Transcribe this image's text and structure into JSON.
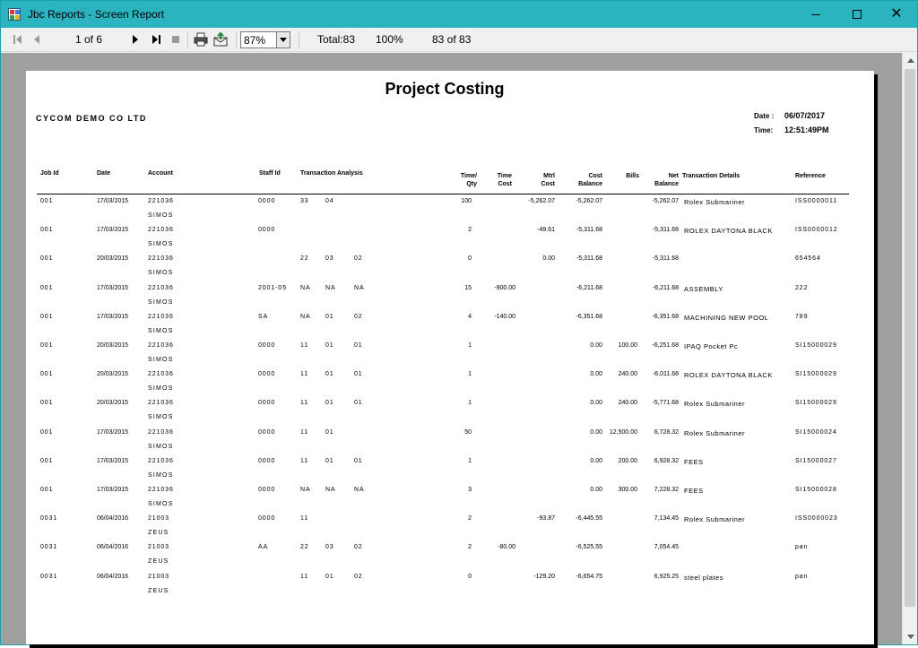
{
  "window": {
    "title": "Jbc Reports - Screen Report"
  },
  "toolbar": {
    "page_indicator": "1 of 6",
    "zoom": "87%",
    "total": "Total:83",
    "percent": "100%",
    "record_count": "83 of 83"
  },
  "report": {
    "title": "Project Costing",
    "company": "CYCOM DEMO CO LTD",
    "date_label": "Date :",
    "date_value": "06/07/2017",
    "time_label": "Time:",
    "time_value": "12:51:49PM",
    "headers": {
      "job_id": "Job Id",
      "date": "Date",
      "account": "Account",
      "staff_id": "Staff Id",
      "transaction_analysis": "Transaction Analysis",
      "time_qty_1": "Time/",
      "time_qty_2": "Qty",
      "time_cost_1": "Time",
      "time_cost_2": "Cost",
      "mtrl_cost_1": "Mtrl",
      "mtrl_cost_2": "Cost",
      "cost_balance_1": "Cost",
      "cost_balance_2": "Balance",
      "bills": "Bills",
      "net_balance_1": "Net",
      "net_balance_2": "Balance",
      "transaction_details": "Transaction  Details",
      "reference": "Reference"
    },
    "rows": [
      {
        "job": "001",
        "date": "17/03/2015",
        "account": "221036",
        "name": "SIMOS",
        "staff": "0000",
        "a1": "33",
        "a2": "04",
        "a3": "",
        "qty": "100",
        "time_cost": "",
        "mtrl_cost": "-5,262.07",
        "cost_balance": "-5,262.07",
        "bills": "",
        "net_balance": "-5,262.07",
        "details": "Rolex Submariner",
        "reference": "ISS0000011"
      },
      {
        "job": "001",
        "date": "17/03/2015",
        "account": "221036",
        "name": "SIMOS",
        "staff": "0000",
        "a1": "",
        "a2": "",
        "a3": "",
        "qty": "2",
        "time_cost": "",
        "mtrl_cost": "-49.61",
        "cost_balance": "-5,311.68",
        "bills": "",
        "net_balance": "-5,311.68",
        "details": "ROLEX DAYTONA BLACK",
        "reference": "ISS0000012"
      },
      {
        "job": "001",
        "date": "20/03/2015",
        "account": "221036",
        "name": "SIMOS",
        "staff": "",
        "a1": "22",
        "a2": "03",
        "a3": "02",
        "qty": "0",
        "time_cost": "",
        "mtrl_cost": "0.00",
        "cost_balance": "-5,311.68",
        "bills": "",
        "net_balance": "-5,311.68",
        "details": "",
        "reference": "654564"
      },
      {
        "job": "001",
        "date": "17/03/2015",
        "account": "221036",
        "name": "SIMOS",
        "staff": "2001-05",
        "a1": "NA",
        "a2": "NA",
        "a3": "NA",
        "qty": "15",
        "time_cost": "-900.00",
        "mtrl_cost": "",
        "cost_balance": "-6,211.68",
        "bills": "",
        "net_balance": "-6,211.68",
        "details": "ASSEMBLY",
        "reference": "222"
      },
      {
        "job": "001",
        "date": "17/03/2015",
        "account": "221036",
        "name": "SIMOS",
        "staff": "SA",
        "a1": "NA",
        "a2": "01",
        "a3": "02",
        "qty": "4",
        "time_cost": "-140.00",
        "mtrl_cost": "",
        "cost_balance": "-6,351.68",
        "bills": "",
        "net_balance": "-6,351.68",
        "details": "MACHINING NEW POOL",
        "reference": "789"
      },
      {
        "job": "001",
        "date": "20/03/2015",
        "account": "221036",
        "name": "SIMOS",
        "staff": "0000",
        "a1": "11",
        "a2": "01",
        "a3": "01",
        "qty": "1",
        "time_cost": "",
        "mtrl_cost": "",
        "cost_balance": "0.00",
        "bills": "100.00",
        "net_balance": "-6,251.68",
        "details": "IPAQ Pocket Pc",
        "reference": "SI15000029"
      },
      {
        "job": "001",
        "date": "20/03/2015",
        "account": "221036",
        "name": "SIMOS",
        "staff": "0000",
        "a1": "11",
        "a2": "01",
        "a3": "01",
        "qty": "1",
        "time_cost": "",
        "mtrl_cost": "",
        "cost_balance": "0.00",
        "bills": "240.00",
        "net_balance": "-6,011.68",
        "details": "ROLEX DAYTONA BLACK",
        "reference": "SI15000029"
      },
      {
        "job": "001",
        "date": "20/03/2015",
        "account": "221036",
        "name": "SIMOS",
        "staff": "0000",
        "a1": "11",
        "a2": "01",
        "a3": "01",
        "qty": "1",
        "time_cost": "",
        "mtrl_cost": "",
        "cost_balance": "0.00",
        "bills": "240.00",
        "net_balance": "-5,771.68",
        "details": "Rolex Submariner",
        "reference": "SI15000029"
      },
      {
        "job": "001",
        "date": "17/03/2015",
        "account": "221036",
        "name": "SIMOS",
        "staff": "0000",
        "a1": "11",
        "a2": "01",
        "a3": "",
        "qty": "50",
        "time_cost": "",
        "mtrl_cost": "",
        "cost_balance": "0.00",
        "bills": "12,500.00",
        "net_balance": "6,728.32",
        "details": "Rolex Submariner",
        "reference": "SI15000024"
      },
      {
        "job": "001",
        "date": "17/03/2015",
        "account": "221036",
        "name": "SIMOS",
        "staff": "0000",
        "a1": "11",
        "a2": "01",
        "a3": "01",
        "qty": "1",
        "time_cost": "",
        "mtrl_cost": "",
        "cost_balance": "0.00",
        "bills": "200.00",
        "net_balance": "6,928.32",
        "details": "FEES",
        "reference": "SI15000027"
      },
      {
        "job": "001",
        "date": "17/03/2015",
        "account": "221036",
        "name": "SIMOS",
        "staff": "0000",
        "a1": "NA",
        "a2": "NA",
        "a3": "NA",
        "qty": "3",
        "time_cost": "",
        "mtrl_cost": "",
        "cost_balance": "0.00",
        "bills": "300.00",
        "net_balance": "7,228.32",
        "details": "FEES",
        "reference": "SI15000028"
      },
      {
        "job": "0031",
        "date": "06/04/2016",
        "account": "21003",
        "name": "ZEUS",
        "staff": "0000",
        "a1": "11",
        "a2": "",
        "a3": "",
        "qty": "2",
        "time_cost": "",
        "mtrl_cost": "-93.87",
        "cost_balance": "-6,445.55",
        "bills": "",
        "net_balance": "7,134.45",
        "details": "Rolex Submariner",
        "reference": "ISS0000023"
      },
      {
        "job": "0031",
        "date": "06/04/2016",
        "account": "21003",
        "name": "ZEUS",
        "staff": "AA",
        "a1": "22",
        "a2": "03",
        "a3": "02",
        "qty": "2",
        "time_cost": "-80.00",
        "mtrl_cost": "",
        "cost_balance": "-6,525.55",
        "bills": "",
        "net_balance": "7,054.45",
        "details": "",
        "reference": "pan"
      },
      {
        "job": "0031",
        "date": "06/04/2016",
        "account": "21003",
        "name": "ZEUS",
        "staff": "",
        "a1": "11",
        "a2": "01",
        "a3": "02",
        "qty": "0",
        "time_cost": "",
        "mtrl_cost": "-129.20",
        "cost_balance": "-6,654.75",
        "bills": "",
        "net_balance": "6,925.25",
        "details": "steel plates",
        "reference": "pan"
      }
    ]
  }
}
